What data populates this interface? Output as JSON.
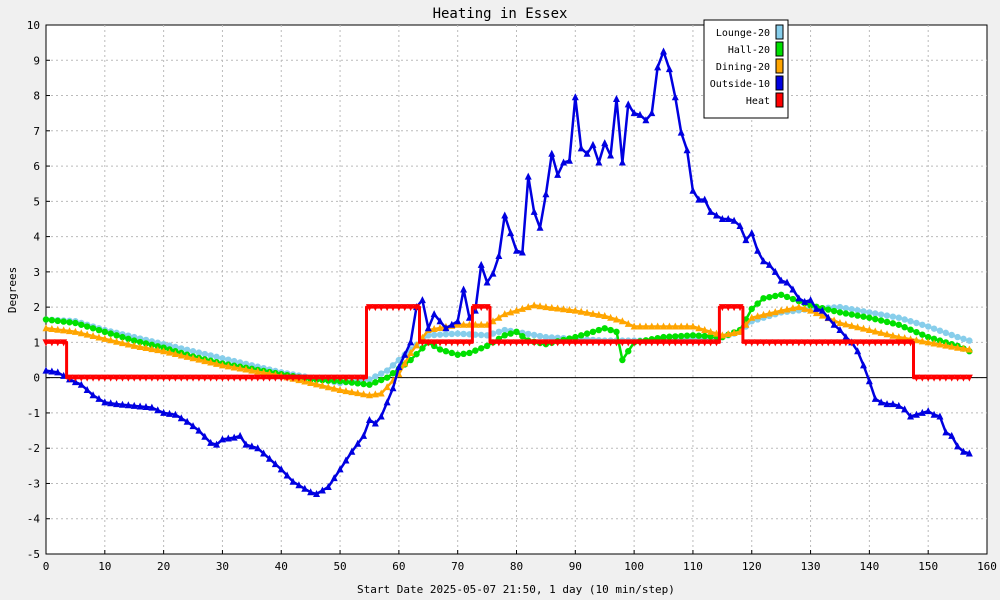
{
  "chart_data": {
    "type": "line",
    "title": "Heating in Essex",
    "xlabel": "Start Date 2025-05-07 21:50, 1 day (10 min/step)",
    "ylabel": "Degrees",
    "xlim": [
      0,
      160
    ],
    "ylim": [
      -5,
      10
    ],
    "x_ticks": [
      0,
      10,
      20,
      30,
      40,
      50,
      60,
      70,
      80,
      90,
      100,
      110,
      120,
      130,
      140,
      150,
      160
    ],
    "y_ticks": [
      -5,
      -4,
      -3,
      -2,
      -1,
      0,
      1,
      2,
      3,
      4,
      5,
      6,
      7,
      8,
      9,
      10
    ],
    "grid": true,
    "legend_position": "top-right",
    "background": "#f0f0f0",
    "plot_background": "#ffffff",
    "series": [
      {
        "name": "Lounge-20",
        "color": "#87ceeb",
        "marker": "circle",
        "points": [
          [
            0,
            1.65
          ],
          [
            5,
            1.6
          ],
          [
            10,
            1.35
          ],
          [
            15,
            1.15
          ],
          [
            20,
            0.95
          ],
          [
            25,
            0.75
          ],
          [
            30,
            0.55
          ],
          [
            35,
            0.35
          ],
          [
            40,
            0.15
          ],
          [
            45,
            0.0
          ],
          [
            50,
            -0.15
          ],
          [
            55,
            -0.05
          ],
          [
            58,
            0.2
          ],
          [
            62,
            0.8
          ],
          [
            65,
            1.2
          ],
          [
            70,
            1.25
          ],
          [
            75,
            1.2
          ],
          [
            78,
            1.35
          ],
          [
            80,
            1.3
          ],
          [
            85,
            1.15
          ],
          [
            90,
            1.1
          ],
          [
            95,
            1.05
          ],
          [
            100,
            1.05
          ],
          [
            105,
            1.05
          ],
          [
            110,
            1.1
          ],
          [
            115,
            1.15
          ],
          [
            118,
            1.3
          ],
          [
            120,
            1.6
          ],
          [
            125,
            1.85
          ],
          [
            130,
            1.95
          ],
          [
            135,
            2.0
          ],
          [
            140,
            1.85
          ],
          [
            145,
            1.7
          ],
          [
            150,
            1.45
          ],
          [
            155,
            1.15
          ],
          [
            157,
            1.05
          ]
        ]
      },
      {
        "name": "Hall-20",
        "color": "#00e000",
        "marker": "circle",
        "points": [
          [
            0,
            1.65
          ],
          [
            5,
            1.55
          ],
          [
            10,
            1.3
          ],
          [
            15,
            1.05
          ],
          [
            20,
            0.85
          ],
          [
            25,
            0.6
          ],
          [
            30,
            0.4
          ],
          [
            35,
            0.25
          ],
          [
            40,
            0.1
          ],
          [
            45,
            -0.05
          ],
          [
            50,
            -0.1
          ],
          [
            55,
            -0.2
          ],
          [
            58,
            0.0
          ],
          [
            62,
            0.5
          ],
          [
            65,
            1.0
          ],
          [
            67,
            0.8
          ],
          [
            70,
            0.65
          ],
          [
            72,
            0.7
          ],
          [
            75,
            0.9
          ],
          [
            78,
            1.2
          ],
          [
            80,
            1.3
          ],
          [
            82,
            1.05
          ],
          [
            85,
            0.95
          ],
          [
            90,
            1.15
          ],
          [
            95,
            1.4
          ],
          [
            97,
            1.3
          ],
          [
            98,
            0.5
          ],
          [
            100,
            1.0
          ],
          [
            105,
            1.15
          ],
          [
            110,
            1.2
          ],
          [
            115,
            1.15
          ],
          [
            118,
            1.35
          ],
          [
            120,
            1.95
          ],
          [
            122,
            2.25
          ],
          [
            125,
            2.35
          ],
          [
            130,
            2.05
          ],
          [
            135,
            1.85
          ],
          [
            140,
            1.7
          ],
          [
            145,
            1.5
          ],
          [
            150,
            1.15
          ],
          [
            155,
            0.9
          ],
          [
            157,
            0.75
          ]
        ]
      },
      {
        "name": "Dining-20",
        "color": "#ffa500",
        "marker": "triangle",
        "points": [
          [
            0,
            1.4
          ],
          [
            5,
            1.3
          ],
          [
            10,
            1.1
          ],
          [
            15,
            0.9
          ],
          [
            20,
            0.75
          ],
          [
            25,
            0.55
          ],
          [
            30,
            0.35
          ],
          [
            35,
            0.2
          ],
          [
            40,
            0.05
          ],
          [
            45,
            -0.15
          ],
          [
            50,
            -0.35
          ],
          [
            55,
            -0.5
          ],
          [
            57,
            -0.45
          ],
          [
            60,
            0.1
          ],
          [
            62,
            0.7
          ],
          [
            65,
            1.35
          ],
          [
            70,
            1.5
          ],
          [
            75,
            1.5
          ],
          [
            78,
            1.8
          ],
          [
            80,
            1.9
          ],
          [
            83,
            2.05
          ],
          [
            85,
            2.0
          ],
          [
            90,
            1.9
          ],
          [
            95,
            1.75
          ],
          [
            98,
            1.6
          ],
          [
            100,
            1.45
          ],
          [
            105,
            1.45
          ],
          [
            110,
            1.45
          ],
          [
            115,
            1.2
          ],
          [
            118,
            1.3
          ],
          [
            120,
            1.7
          ],
          [
            125,
            1.9
          ],
          [
            128,
            2.0
          ],
          [
            130,
            1.9
          ],
          [
            135,
            1.55
          ],
          [
            140,
            1.35
          ],
          [
            145,
            1.15
          ],
          [
            150,
            1.0
          ],
          [
            155,
            0.85
          ],
          [
            157,
            0.8
          ]
        ]
      },
      {
        "name": "Outside-10",
        "color": "#0000e0",
        "marker": "triangle",
        "points": [
          [
            0,
            0.2
          ],
          [
            2,
            0.15
          ],
          [
            4,
            -0.05
          ],
          [
            6,
            -0.2
          ],
          [
            8,
            -0.5
          ],
          [
            10,
            -0.7
          ],
          [
            12,
            -0.75
          ],
          [
            15,
            -0.8
          ],
          [
            18,
            -0.85
          ],
          [
            20,
            -1.0
          ],
          [
            22,
            -1.05
          ],
          [
            24,
            -1.25
          ],
          [
            26,
            -1.5
          ],
          [
            28,
            -1.85
          ],
          [
            29,
            -1.9
          ],
          [
            30,
            -1.75
          ],
          [
            32,
            -1.7
          ],
          [
            33,
            -1.65
          ],
          [
            34,
            -1.9
          ],
          [
            36,
            -2.0
          ],
          [
            38,
            -2.3
          ],
          [
            40,
            -2.6
          ],
          [
            42,
            -2.95
          ],
          [
            44,
            -3.15
          ],
          [
            45,
            -3.25
          ],
          [
            46,
            -3.3
          ],
          [
            48,
            -3.1
          ],
          [
            50,
            -2.6
          ],
          [
            52,
            -2.1
          ],
          [
            54,
            -1.65
          ],
          [
            55,
            -1.2
          ],
          [
            56,
            -1.3
          ],
          [
            57,
            -1.1
          ],
          [
            59,
            -0.3
          ],
          [
            60,
            0.3
          ],
          [
            62,
            1.0
          ],
          [
            63,
            2.0
          ],
          [
            64,
            2.2
          ],
          [
            65,
            1.4
          ],
          [
            66,
            1.8
          ],
          [
            68,
            1.4
          ],
          [
            70,
            1.6
          ],
          [
            71,
            2.5
          ],
          [
            72,
            1.7
          ],
          [
            73,
            1.9
          ],
          [
            74,
            3.2
          ],
          [
            75,
            2.7
          ],
          [
            76,
            2.95
          ],
          [
            77,
            3.45
          ],
          [
            78,
            4.6
          ],
          [
            79,
            4.1
          ],
          [
            80,
            3.6
          ],
          [
            81,
            3.55
          ],
          [
            82,
            5.7
          ],
          [
            83,
            4.7
          ],
          [
            84,
            4.25
          ],
          [
            85,
            5.2
          ],
          [
            86,
            6.35
          ],
          [
            87,
            5.75
          ],
          [
            88,
            6.1
          ],
          [
            89,
            6.15
          ],
          [
            90,
            7.95
          ],
          [
            91,
            6.5
          ],
          [
            92,
            6.35
          ],
          [
            93,
            6.6
          ],
          [
            94,
            6.1
          ],
          [
            95,
            6.65
          ],
          [
            96,
            6.3
          ],
          [
            97,
            7.9
          ],
          [
            98,
            6.1
          ],
          [
            99,
            7.75
          ],
          [
            100,
            7.5
          ],
          [
            101,
            7.45
          ],
          [
            102,
            7.3
          ],
          [
            103,
            7.5
          ],
          [
            104,
            8.8
          ],
          [
            105,
            9.25
          ],
          [
            106,
            8.75
          ],
          [
            107,
            7.95
          ],
          [
            108,
            6.95
          ],
          [
            109,
            6.45
          ],
          [
            110,
            5.3
          ],
          [
            111,
            5.05
          ],
          [
            112,
            5.05
          ],
          [
            113,
            4.7
          ],
          [
            114,
            4.6
          ],
          [
            115,
            4.5
          ],
          [
            116,
            4.5
          ],
          [
            117,
            4.45
          ],
          [
            118,
            4.3
          ],
          [
            119,
            3.9
          ],
          [
            120,
            4.1
          ],
          [
            121,
            3.6
          ],
          [
            122,
            3.3
          ],
          [
            123,
            3.2
          ],
          [
            124,
            3.0
          ],
          [
            125,
            2.75
          ],
          [
            126,
            2.7
          ],
          [
            127,
            2.5
          ],
          [
            128,
            2.25
          ],
          [
            129,
            2.15
          ],
          [
            130,
            2.2
          ],
          [
            131,
            1.95
          ],
          [
            132,
            1.9
          ],
          [
            133,
            1.7
          ],
          [
            134,
            1.5
          ],
          [
            135,
            1.35
          ],
          [
            136,
            1.15
          ],
          [
            137,
            1.0
          ],
          [
            138,
            0.75
          ],
          [
            139,
            0.35
          ],
          [
            140,
            -0.1
          ],
          [
            141,
            -0.6
          ],
          [
            142,
            -0.7
          ],
          [
            143,
            -0.75
          ],
          [
            144,
            -0.75
          ],
          [
            145,
            -0.8
          ],
          [
            146,
            -0.9
          ],
          [
            147,
            -1.1
          ],
          [
            148,
            -1.05
          ],
          [
            149,
            -1.0
          ],
          [
            150,
            -0.95
          ],
          [
            151,
            -1.05
          ],
          [
            152,
            -1.1
          ],
          [
            153,
            -1.55
          ],
          [
            154,
            -1.65
          ],
          [
            155,
            -1.95
          ],
          [
            156,
            -2.1
          ],
          [
            157,
            -2.15
          ]
        ]
      },
      {
        "name": "Heat",
        "color": "#ff0000",
        "marker": "triangle-down",
        "step": true,
        "points": [
          [
            0,
            1
          ],
          [
            3.5,
            1
          ],
          [
            3.5,
            0
          ],
          [
            54.5,
            0
          ],
          [
            54.5,
            2
          ],
          [
            63.5,
            2
          ],
          [
            63.5,
            1
          ],
          [
            72.5,
            1
          ],
          [
            72.5,
            2
          ],
          [
            75.5,
            2
          ],
          [
            75.5,
            1
          ],
          [
            114.5,
            1
          ],
          [
            114.5,
            2
          ],
          [
            118.5,
            2
          ],
          [
            118.5,
            1
          ],
          [
            147.5,
            1
          ],
          [
            147.5,
            0
          ],
          [
            157,
            0
          ]
        ]
      }
    ]
  }
}
